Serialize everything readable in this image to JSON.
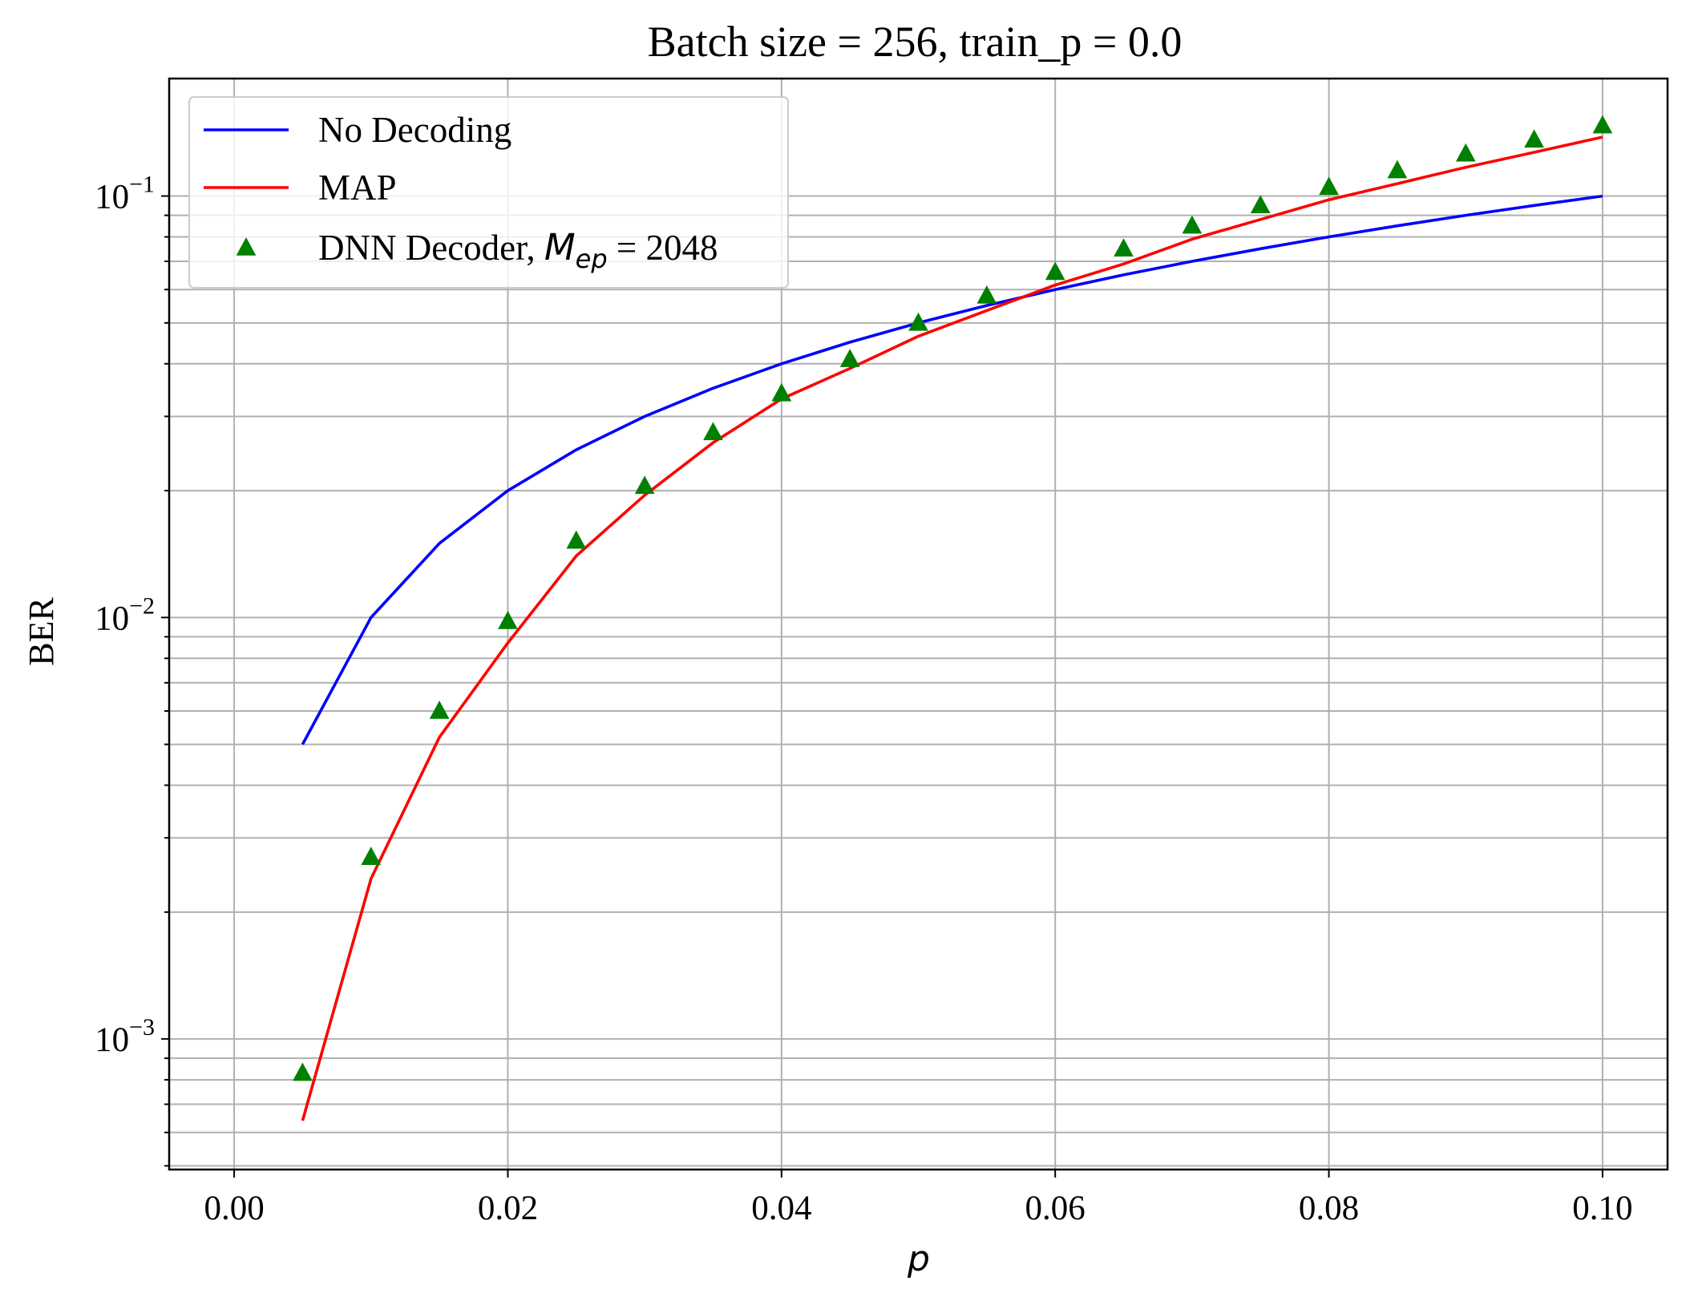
{
  "chart_data": {
    "type": "line",
    "title": "Batch size = 256, train_p = 0.0",
    "xlabel": "p",
    "ylabel": "BER",
    "yscale": "log",
    "grid": true,
    "legend_position": "top-left",
    "xlim": [
      -0.00475,
      0.10475
    ],
    "ylim": [
      0.00049,
      0.19
    ],
    "x_ticks": [
      0.0,
      0.02,
      0.04,
      0.06,
      0.08,
      0.1
    ],
    "x_tick_labels": [
      "0.00",
      "0.02",
      "0.04",
      "0.06",
      "0.08",
      "0.10"
    ],
    "y_major_ticks": [
      0.001,
      0.01,
      0.1
    ],
    "y_tick_labels": [
      {
        "base": "10",
        "exp": "−3"
      },
      {
        "base": "10",
        "exp": "−2"
      },
      {
        "base": "10",
        "exp": "−1"
      }
    ],
    "x": [
      0.005,
      0.01,
      0.015,
      0.02,
      0.025,
      0.03,
      0.035,
      0.04,
      0.045,
      0.05,
      0.055,
      0.06,
      0.065,
      0.07,
      0.075,
      0.08,
      0.085,
      0.09,
      0.095,
      0.1
    ],
    "series": [
      {
        "name": "No Decoding",
        "kind": "line",
        "color": "#0000ff",
        "values": [
          0.005,
          0.01,
          0.015,
          0.02,
          0.025,
          0.03,
          0.035,
          0.04,
          0.045,
          0.05,
          0.055,
          0.06,
          0.065,
          0.07,
          0.075,
          0.08,
          0.085,
          0.09,
          0.095,
          0.1
        ]
      },
      {
        "name": "MAP",
        "kind": "line",
        "color": "#ff0000",
        "values": [
          0.00064,
          0.0024,
          0.0052,
          0.0087,
          0.014,
          0.0195,
          0.026,
          0.033,
          0.039,
          0.0465,
          0.0535,
          0.0615,
          0.069,
          0.079,
          0.088,
          0.098,
          0.107,
          0.117,
          0.127,
          0.138
        ]
      },
      {
        "name": "DNN Decoder, ",
        "name_math": "M",
        "name_math_sub": "ep",
        "name_suffix": " = 2048",
        "kind": "scatter",
        "marker": "triangle-up",
        "color": "#008000",
        "values": [
          0.00083,
          0.0027,
          0.006,
          0.0098,
          0.0152,
          0.0205,
          0.0275,
          0.034,
          0.041,
          0.05,
          0.058,
          0.066,
          0.075,
          0.085,
          0.095,
          0.105,
          0.115,
          0.126,
          0.136,
          0.147
        ]
      }
    ]
  }
}
